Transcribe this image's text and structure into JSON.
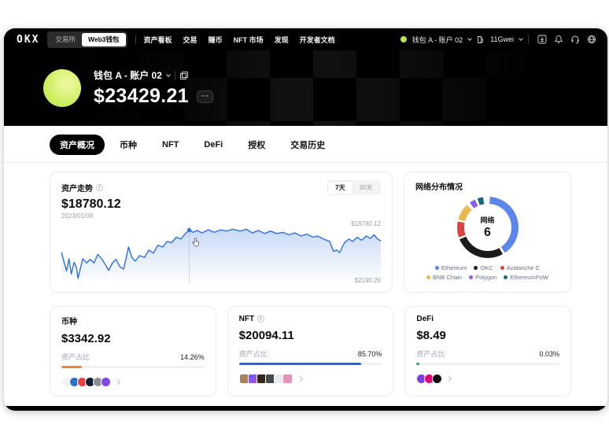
{
  "nav": {
    "logo": "OKX",
    "toggle": {
      "exchange": "交易所",
      "web3": "Web3钱包"
    },
    "menu": [
      "资产看板",
      "交易",
      "赚币",
      "NFT 市场",
      "发现",
      "开发者文档"
    ],
    "account_label": "钱包 A - 账户 02",
    "account_dot_color": "#b9e94e",
    "gas_label": "11Gwei"
  },
  "hero": {
    "wallet_name": "钱包 A - 账户 02",
    "balance": "$23429.21",
    "more_label": "⋯"
  },
  "tabs": [
    {
      "label": "资产概况",
      "active": true
    },
    {
      "label": "币种",
      "active": false
    },
    {
      "label": "NFT",
      "active": false
    },
    {
      "label": "DeFi",
      "active": false
    },
    {
      "label": "授权",
      "active": false
    },
    {
      "label": "交易历史",
      "active": false
    }
  ],
  "chart_data": [
    {
      "type": "area",
      "title": "资产走势",
      "current_value": "$18780.12",
      "current_date": "2023/01/08",
      "range_options": [
        "7天",
        "30天"
      ],
      "active_range": "7天",
      "y_max_label": "$18780.12",
      "y_min_label": "$2190.26",
      "line_color": "#2e6fe0",
      "fill_color_top": "rgba(46,111,224,0.26)",
      "marker": [
        40,
        13
      ],
      "points": [
        [
          0,
          49
        ],
        [
          1.6,
          80
        ],
        [
          2.4,
          60
        ],
        [
          3.1,
          85
        ],
        [
          4,
          66
        ],
        [
          4.7,
          74
        ],
        [
          5.2,
          92
        ],
        [
          6.7,
          60
        ],
        [
          7.9,
          67
        ],
        [
          9,
          61
        ],
        [
          10.2,
          67
        ],
        [
          11.4,
          53
        ],
        [
          12.6,
          60
        ],
        [
          13.8,
          70
        ],
        [
          14.8,
          79
        ],
        [
          16,
          67
        ],
        [
          17.1,
          61
        ],
        [
          18.3,
          73
        ],
        [
          19.5,
          77
        ],
        [
          21,
          41
        ],
        [
          22.1,
          58
        ],
        [
          23.1,
          64
        ],
        [
          24.5,
          55
        ],
        [
          26,
          58
        ],
        [
          27.4,
          46
        ],
        [
          28.8,
          51
        ],
        [
          30.2,
          38
        ],
        [
          31.7,
          41
        ],
        [
          33.1,
          32
        ],
        [
          34.5,
          34
        ],
        [
          36,
          25
        ],
        [
          37.4,
          28
        ],
        [
          38.8,
          19
        ],
        [
          40,
          13
        ],
        [
          41.2,
          17
        ],
        [
          42.6,
          14
        ],
        [
          44,
          18
        ],
        [
          46,
          13
        ],
        [
          47.9,
          17
        ],
        [
          49.8,
          13
        ],
        [
          51.7,
          15
        ],
        [
          53.6,
          12
        ],
        [
          56,
          15
        ],
        [
          57.9,
          12
        ],
        [
          59.8,
          18
        ],
        [
          61.7,
          14
        ],
        [
          63.6,
          19
        ],
        [
          65.5,
          15
        ],
        [
          67.4,
          19
        ],
        [
          69.3,
          17
        ],
        [
          71.2,
          21
        ],
        [
          73.1,
          18
        ],
        [
          75,
          23
        ],
        [
          76.9,
          20
        ],
        [
          78.8,
          25
        ],
        [
          80.2,
          23
        ],
        [
          82.1,
          28
        ],
        [
          84,
          32
        ],
        [
          85.2,
          48
        ],
        [
          86.2,
          46
        ],
        [
          87.1,
          50
        ],
        [
          88.6,
          34
        ],
        [
          90,
          28
        ],
        [
          91.2,
          32
        ],
        [
          92.6,
          25
        ],
        [
          94,
          30
        ],
        [
          95.5,
          23
        ],
        [
          96.7,
          27
        ],
        [
          97.9,
          21
        ],
        [
          99,
          28
        ],
        [
          100,
          31
        ]
      ]
    },
    {
      "type": "donut",
      "title": "网络分布情况",
      "center_label": "网络",
      "center_value": "6",
      "segments": [
        {
          "name": "Ethereum",
          "color": "#5b86ea",
          "start": 4,
          "end": 146
        },
        {
          "name": "OKC",
          "color": "#1b1b1b",
          "start": 151,
          "end": 247
        },
        {
          "name": "Avalanche C",
          "color": "#d8453f",
          "start": 251,
          "end": 281
        },
        {
          "name": "BNB Chain",
          "color": "#ecb84e",
          "start": 285,
          "end": 317
        },
        {
          "name": "Polygon",
          "color": "#8b5cf6",
          "start": 324,
          "end": 335
        },
        {
          "name": "EthereumPoW",
          "color": "#17697a",
          "start": 340,
          "end": 351
        }
      ]
    }
  ],
  "summary_cards": [
    {
      "title": "币种",
      "has_info": false,
      "value": "$3342.92",
      "ratio_label": "资产占比",
      "percent_label": "14.26%",
      "percent": 14.26,
      "bar_color": "#ef8239",
      "chip_shape": "circle",
      "chips": [
        {
          "name": "eth-token-icon",
          "color": "#f2f2f2"
        },
        {
          "name": "usdc-token-icon",
          "color": "#2775ca"
        },
        {
          "name": "avax-token-icon",
          "color": "#e84142"
        },
        {
          "name": "okb-token-icon",
          "color": "#121d33"
        },
        {
          "name": "gray-token-icon",
          "color": "#8e9199"
        },
        {
          "name": "polygon-token-icon",
          "color": "#8247e5"
        }
      ]
    },
    {
      "title": "NFT",
      "has_info": true,
      "value": "$20094.11",
      "ratio_label": "资产占比",
      "percent_label": "85.70%",
      "percent": 85.7,
      "bar_color": "#2263e7",
      "chip_shape": "square",
      "chips": [
        {
          "name": "nft-thumb-1",
          "color": "#a8835a"
        },
        {
          "name": "nft-thumb-2",
          "color": "linear-gradient(135deg,#6a5cff,#b44bd8)"
        },
        {
          "name": "nft-thumb-3",
          "color": "#33261a"
        },
        {
          "name": "nft-thumb-4",
          "color": "#47474d"
        },
        {
          "name": "nft-thumb-5",
          "color": "#e9e9ef"
        },
        {
          "name": "nft-thumb-6",
          "color": "#e394b8"
        }
      ]
    },
    {
      "title": "DeFi",
      "has_info": false,
      "value": "$8.49",
      "ratio_label": "资产占比",
      "percent_label": "0.03%",
      "percent": 0.03,
      "bar_color": "#16a085",
      "chip_shape": "circle",
      "chips": [
        {
          "name": "defi-protocol-1",
          "color": "#7b3fe4"
        },
        {
          "name": "defi-protocol-2",
          "color": "#e6007a"
        },
        {
          "name": "defi-protocol-3",
          "color": "#101010"
        }
      ]
    }
  ]
}
